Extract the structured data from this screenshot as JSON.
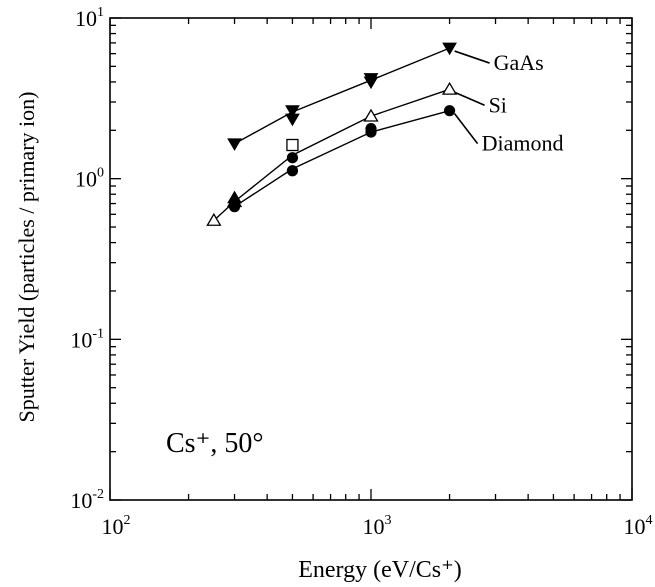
{
  "chart_data": {
    "type": "scatter",
    "x_scale": "log",
    "y_scale": "log",
    "xlim": [
      100,
      10000
    ],
    "ylim": [
      0.01,
      10
    ],
    "xlabel": "Energy (eV/Cs⁺)",
    "ylabel": "Sputter Yield (particles / primary ion)",
    "x_ticks": [
      {
        "value": 100,
        "base": "10",
        "exp": "2"
      },
      {
        "value": 1000,
        "base": "10",
        "exp": "3"
      },
      {
        "value": 10000,
        "base": "10",
        "exp": "4"
      }
    ],
    "y_ticks": [
      {
        "value": 0.01,
        "base": "10",
        "exp": "-2"
      },
      {
        "value": 0.1,
        "base": "10",
        "exp": "-1"
      },
      {
        "value": 1,
        "base": "10",
        "exp": "0"
      },
      {
        "value": 10,
        "base": "10",
        "exp": "1"
      }
    ],
    "annotation": "Cs⁺, 50°",
    "grid": false,
    "series": [
      {
        "name": "GaAs",
        "marker": "triangle-down-filled",
        "line": [
          [
            300,
            1.65
          ],
          [
            500,
            2.6
          ],
          [
            1000,
            4.1
          ],
          [
            2000,
            6.5
          ]
        ],
        "points": [
          [
            300,
            1.65
          ],
          [
            500,
            2.65
          ],
          [
            500,
            2.35
          ],
          [
            1000,
            4.2
          ],
          [
            1000,
            4.0
          ],
          [
            2000,
            6.5
          ]
        ]
      },
      {
        "name": "Si",
        "marker": "triangle-up-open",
        "line": [
          [
            250,
            0.55
          ],
          [
            300,
            0.72
          ],
          [
            500,
            1.4
          ],
          [
            1000,
            2.45
          ],
          [
            2000,
            3.6
          ]
        ],
        "points": [
          [
            250,
            0.55
          ],
          [
            300,
            0.72
          ],
          [
            1000,
            2.45
          ],
          [
            2000,
            3.6
          ]
        ]
      },
      {
        "name": "Diamond",
        "marker": "circle-filled",
        "line": [
          [
            300,
            0.67
          ],
          [
            500,
            1.15
          ],
          [
            1000,
            1.95
          ],
          [
            2000,
            2.65
          ]
        ],
        "points": [
          [
            300,
            0.67
          ],
          [
            500,
            1.12
          ],
          [
            1000,
            1.95
          ],
          [
            1000,
            2.05
          ],
          [
            2000,
            2.65
          ]
        ]
      }
    ],
    "extra_points": [
      {
        "marker": "square-open",
        "x": 500,
        "y": 1.62
      },
      {
        "marker": "circle-filled",
        "x": 500,
        "y": 1.35
      },
      {
        "marker": "triangle-up-filled",
        "x": 300,
        "y": 0.76
      }
    ]
  }
}
